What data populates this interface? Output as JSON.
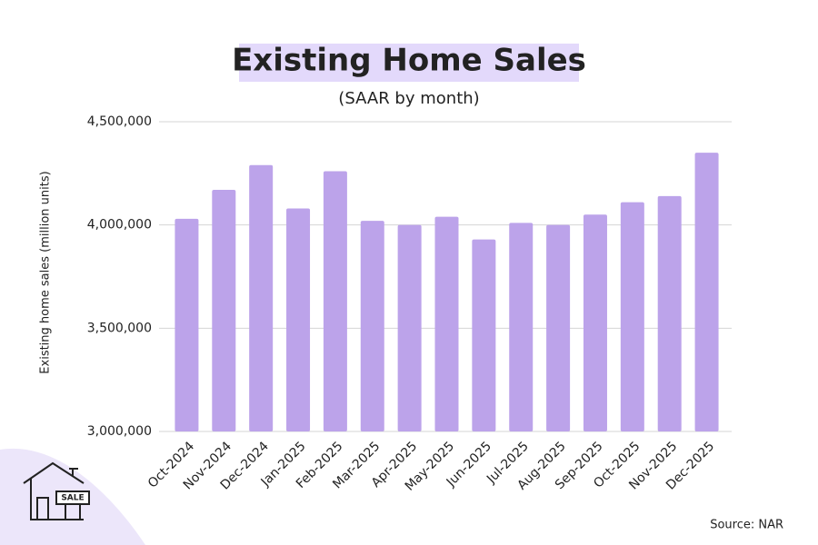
{
  "chart_data": {
    "type": "bar",
    "title": "Existing Home Sales",
    "subtitle": "(SAAR by month)",
    "y_label": "Existing home sales (million units)",
    "source": "Source: NAR",
    "categories": [
      "Oct-2024",
      "Nov-2024",
      "Dec-2024",
      "Jan-2025",
      "Feb-2025",
      "Mar-2025",
      "Apr-2025",
      "May-2025",
      "Jun-2025",
      "Jul-2025",
      "Aug-2025",
      "Sep-2025",
      "Oct-2025",
      "Nov-2025",
      "Dec-2025"
    ],
    "values": [
      4030000,
      4170000,
      4290000,
      4080000,
      4260000,
      4020000,
      4000000,
      4040000,
      3930000,
      4010000,
      4000000,
      4050000,
      4110000,
      4140000,
      4350000
    ],
    "color": "#bca3ea",
    "ylim": [
      3000000,
      4500000
    ],
    "yticks": [
      {
        "value": 3000000,
        "label": "3,000,000"
      },
      {
        "value": 3500000,
        "label": "3,500,000"
      },
      {
        "value": 4000000,
        "label": "4,000,000"
      },
      {
        "value": 4500000,
        "label": "4,500,000"
      }
    ],
    "grid": true
  }
}
